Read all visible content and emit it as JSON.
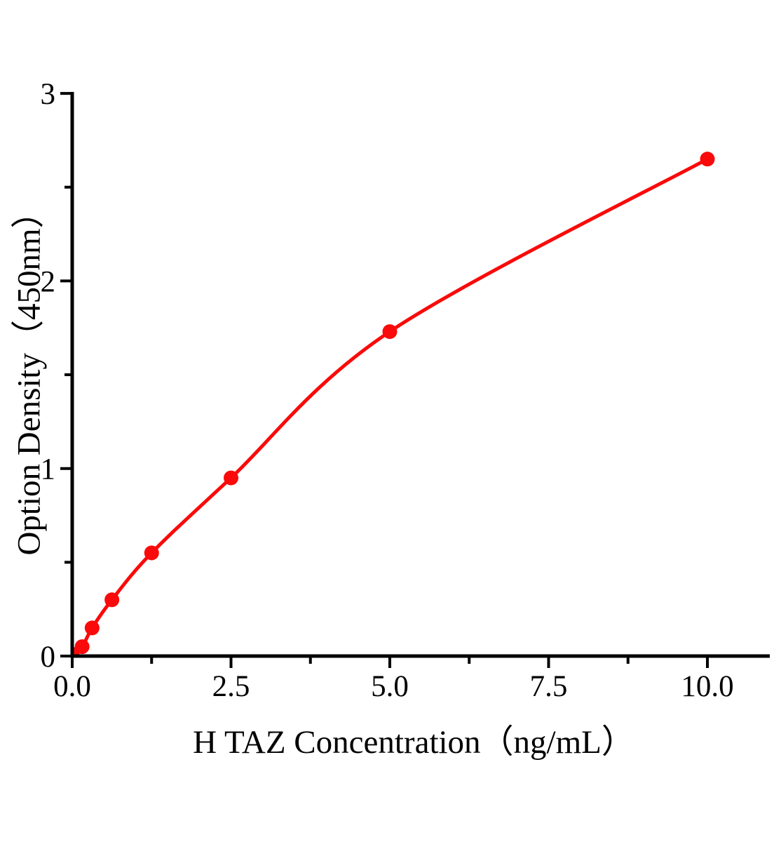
{
  "figure": {
    "background": "#ffffff"
  },
  "chart_data": {
    "type": "scatter",
    "title": "",
    "xlabel": "H TAZ Concentration（ng/mL）",
    "ylabel": "Option Density（450nm）",
    "x": [
      0,
      0.156,
      0.313,
      0.625,
      1.25,
      2.5,
      5,
      10
    ],
    "y": [
      0.01,
      0.05,
      0.15,
      0.3,
      0.55,
      0.95,
      1.73,
      2.65
    ],
    "curve_fit": true,
    "xlim": [
      0,
      10.95
    ],
    "ylim": [
      0,
      3
    ],
    "x_major_ticks": [
      0,
      2.5,
      5,
      7.5,
      10
    ],
    "x_tick_labels": [
      "0.0",
      "2.5",
      "5.0",
      "7.5",
      "10.0"
    ],
    "x_minor_ticks": [
      1.25,
      3.75,
      6.25,
      8.75
    ],
    "y_major_ticks": [
      0,
      1,
      2,
      3
    ],
    "y_tick_labels": [
      "0",
      "1",
      "2",
      "3"
    ],
    "y_minor_ticks": [
      0.5,
      1.5,
      2.5
    ],
    "legend": null,
    "grid": false,
    "colors": {
      "curve": "#fa0a0a",
      "point": "#fa0a0a",
      "axis": "#000000",
      "text": "#000000",
      "background": "#ffffff"
    }
  }
}
